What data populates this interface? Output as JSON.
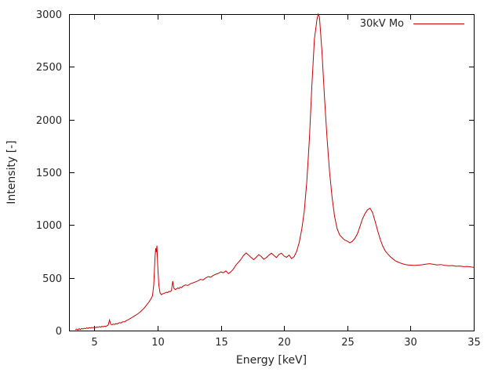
{
  "window": {
    "background": "#ffffff"
  },
  "chart_data": {
    "type": "line",
    "title": "",
    "xlabel": "Energy [keV]",
    "ylabel": "Intensity [-]",
    "xlim": [
      3,
      35
    ],
    "ylim": [
      0,
      3000
    ],
    "xticks": [
      5,
      10,
      15,
      20,
      25,
      30,
      35
    ],
    "yticks": [
      0,
      500,
      1000,
      1500,
      2000,
      2500,
      3000
    ],
    "grid": false,
    "legend": {
      "position": "top-right-inside",
      "entries": [
        "30kV Mo"
      ]
    },
    "series": [
      {
        "name": "30kV Mo",
        "color": "#cc0000",
        "points": [
          [
            3.5,
            8
          ],
          [
            3.6,
            14
          ],
          [
            3.7,
            6
          ],
          [
            3.8,
            18
          ],
          [
            3.9,
            10
          ],
          [
            4.0,
            20
          ],
          [
            4.1,
            15
          ],
          [
            4.2,
            22
          ],
          [
            4.3,
            18
          ],
          [
            4.4,
            26
          ],
          [
            4.5,
            20
          ],
          [
            4.6,
            28
          ],
          [
            4.7,
            24
          ],
          [
            4.8,
            30
          ],
          [
            4.9,
            26
          ],
          [
            5.0,
            32
          ],
          [
            5.1,
            28
          ],
          [
            5.2,
            34
          ],
          [
            5.3,
            30
          ],
          [
            5.4,
            38
          ],
          [
            5.5,
            32
          ],
          [
            5.6,
            40
          ],
          [
            5.7,
            36
          ],
          [
            5.8,
            42
          ],
          [
            5.9,
            38
          ],
          [
            6.0,
            46
          ],
          [
            6.1,
            52
          ],
          [
            6.2,
            100
          ],
          [
            6.3,
            60
          ],
          [
            6.4,
            55
          ],
          [
            6.5,
            62
          ],
          [
            6.6,
            58
          ],
          [
            6.7,
            66
          ],
          [
            6.8,
            62
          ],
          [
            6.9,
            70
          ],
          [
            7.0,
            76
          ],
          [
            7.1,
            72
          ],
          [
            7.2,
            80
          ],
          [
            7.3,
            85
          ],
          [
            7.4,
            82
          ],
          [
            7.5,
            92
          ],
          [
            7.6,
            98
          ],
          [
            7.7,
            104
          ],
          [
            7.8,
            112
          ],
          [
            7.9,
            118
          ],
          [
            8.0,
            126
          ],
          [
            8.1,
            132
          ],
          [
            8.2,
            140
          ],
          [
            8.3,
            148
          ],
          [
            8.4,
            156
          ],
          [
            8.5,
            164
          ],
          [
            8.6,
            174
          ],
          [
            8.7,
            184
          ],
          [
            8.8,
            196
          ],
          [
            8.9,
            208
          ],
          [
            9.0,
            222
          ],
          [
            9.1,
            238
          ],
          [
            9.2,
            252
          ],
          [
            9.3,
            268
          ],
          [
            9.4,
            286
          ],
          [
            9.5,
            305
          ],
          [
            9.6,
            330
          ],
          [
            9.7,
            430
          ],
          [
            9.8,
            700
          ],
          [
            9.85,
            780
          ],
          [
            9.9,
            745
          ],
          [
            9.95,
            805
          ],
          [
            10.0,
            640
          ],
          [
            10.1,
            430
          ],
          [
            10.2,
            355
          ],
          [
            10.3,
            340
          ],
          [
            10.4,
            348
          ],
          [
            10.5,
            352
          ],
          [
            10.6,
            358
          ],
          [
            10.7,
            364
          ],
          [
            10.8,
            360
          ],
          [
            10.9,
            372
          ],
          [
            11.0,
            368
          ],
          [
            11.1,
            380
          ],
          [
            11.2,
            468
          ],
          [
            11.3,
            400
          ],
          [
            11.4,
            388
          ],
          [
            11.5,
            396
          ],
          [
            11.6,
            404
          ],
          [
            11.7,
            398
          ],
          [
            11.8,
            412
          ],
          [
            11.9,
            406
          ],
          [
            12.0,
            420
          ],
          [
            12.2,
            432
          ],
          [
            12.4,
            428
          ],
          [
            12.6,
            444
          ],
          [
            12.8,
            452
          ],
          [
            13.0,
            462
          ],
          [
            13.2,
            472
          ],
          [
            13.4,
            486
          ],
          [
            13.6,
            480
          ],
          [
            13.8,
            498
          ],
          [
            14.0,
            512
          ],
          [
            14.2,
            506
          ],
          [
            14.4,
            522
          ],
          [
            14.6,
            534
          ],
          [
            14.8,
            542
          ],
          [
            15.0,
            556
          ],
          [
            15.2,
            548
          ],
          [
            15.4,
            566
          ],
          [
            15.6,
            540
          ],
          [
            15.8,
            558
          ],
          [
            16.0,
            584
          ],
          [
            16.2,
            622
          ],
          [
            16.4,
            648
          ],
          [
            16.6,
            676
          ],
          [
            16.8,
            712
          ],
          [
            17.0,
            736
          ],
          [
            17.2,
            716
          ],
          [
            17.4,
            692
          ],
          [
            17.6,
            672
          ],
          [
            17.8,
            694
          ],
          [
            18.0,
            720
          ],
          [
            18.2,
            702
          ],
          [
            18.4,
            676
          ],
          [
            18.6,
            692
          ],
          [
            18.8,
            714
          ],
          [
            19.0,
            734
          ],
          [
            19.2,
            712
          ],
          [
            19.4,
            692
          ],
          [
            19.6,
            722
          ],
          [
            19.8,
            734
          ],
          [
            20.0,
            706
          ],
          [
            20.2,
            694
          ],
          [
            20.4,
            716
          ],
          [
            20.6,
            682
          ],
          [
            20.8,
            702
          ],
          [
            21.0,
            752
          ],
          [
            21.2,
            836
          ],
          [
            21.4,
            960
          ],
          [
            21.6,
            1130
          ],
          [
            21.8,
            1420
          ],
          [
            22.0,
            1810
          ],
          [
            22.2,
            2320
          ],
          [
            22.4,
            2760
          ],
          [
            22.6,
            2950
          ],
          [
            22.7,
            3000
          ],
          [
            22.8,
            2970
          ],
          [
            23.0,
            2640
          ],
          [
            23.2,
            2210
          ],
          [
            23.4,
            1830
          ],
          [
            23.6,
            1500
          ],
          [
            23.8,
            1260
          ],
          [
            24.0,
            1080
          ],
          [
            24.2,
            965
          ],
          [
            24.4,
            905
          ],
          [
            24.6,
            880
          ],
          [
            24.8,
            858
          ],
          [
            25.0,
            848
          ],
          [
            25.2,
            832
          ],
          [
            25.4,
            846
          ],
          [
            25.6,
            874
          ],
          [
            25.8,
            918
          ],
          [
            26.0,
            986
          ],
          [
            26.2,
            1058
          ],
          [
            26.4,
            1108
          ],
          [
            26.6,
            1146
          ],
          [
            26.8,
            1160
          ],
          [
            27.0,
            1118
          ],
          [
            27.2,
            1036
          ],
          [
            27.4,
            948
          ],
          [
            27.6,
            866
          ],
          [
            27.8,
            802
          ],
          [
            28.0,
            756
          ],
          [
            28.2,
            726
          ],
          [
            28.4,
            700
          ],
          [
            28.6,
            680
          ],
          [
            28.8,
            662
          ],
          [
            29.0,
            650
          ],
          [
            29.2,
            640
          ],
          [
            29.4,
            632
          ],
          [
            29.6,
            626
          ],
          [
            29.8,
            622
          ],
          [
            30.0,
            620
          ],
          [
            30.3,
            617
          ],
          [
            30.6,
            620
          ],
          [
            30.9,
            624
          ],
          [
            31.2,
            630
          ],
          [
            31.5,
            634
          ],
          [
            31.8,
            628
          ],
          [
            32.1,
            622
          ],
          [
            32.4,
            626
          ],
          [
            32.7,
            618
          ],
          [
            33.0,
            614
          ],
          [
            33.3,
            616
          ],
          [
            33.6,
            610
          ],
          [
            33.9,
            612
          ],
          [
            34.2,
            606
          ],
          [
            34.5,
            608
          ],
          [
            34.8,
            602
          ],
          [
            35.0,
            600
          ]
        ]
      }
    ]
  }
}
